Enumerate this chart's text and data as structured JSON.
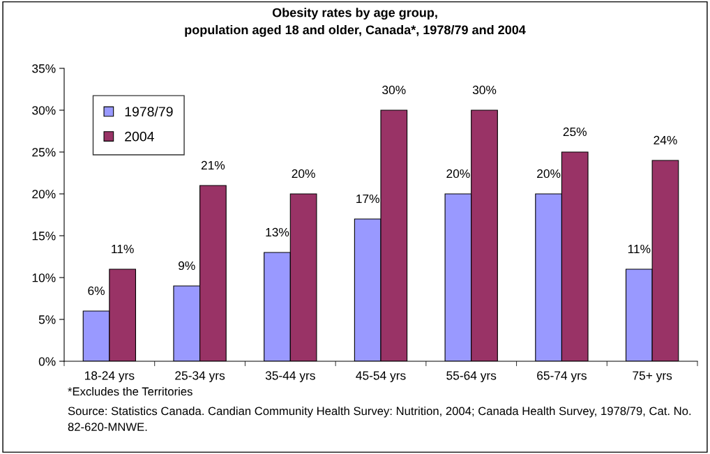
{
  "chart_data": {
    "type": "bar",
    "title": "Obesity rates by age group,\npopulation aged 18 and older, Canada*, 1978/79 and 2004",
    "categories": [
      "18-24 yrs",
      "25-34 yrs",
      "35-44 yrs",
      "45-54 yrs",
      "55-64 yrs",
      "65-74 yrs",
      "75+ yrs"
    ],
    "series": [
      {
        "name": "1978/79",
        "color": "#9999ff",
        "values": [
          6,
          9,
          13,
          17,
          20,
          20,
          11
        ],
        "value_labels": [
          "6%",
          "9%",
          "13%",
          "17%",
          "20%",
          "20%",
          "11%"
        ]
      },
      {
        "name": "2004",
        "color": "#993366",
        "values": [
          11,
          21,
          20,
          30,
          30,
          25,
          24
        ],
        "value_labels": [
          "11%",
          "21%",
          "20%",
          "30%",
          "30%",
          "25%",
          "24%"
        ]
      }
    ],
    "ylim": [
      0,
      35
    ],
    "yticks": [
      {
        "value": 0,
        "label": "0%"
      },
      {
        "value": 5,
        "label": "5%"
      },
      {
        "value": 10,
        "label": "10%"
      },
      {
        "value": 15,
        "label": "15%"
      },
      {
        "value": 20,
        "label": "20%"
      },
      {
        "value": 25,
        "label": "25%"
      },
      {
        "value": 30,
        "label": "30%"
      },
      {
        "value": 35,
        "label": "35%"
      }
    ],
    "grid": false,
    "legend": "top left",
    "annotations": [
      "*Excludes the Territories",
      "Source: Statistics Canada. Candian Community Health Survey: Nutrition, 2004; Canada Health Survey, 1978/79, Cat. No. 82-620-MNWE."
    ]
  }
}
